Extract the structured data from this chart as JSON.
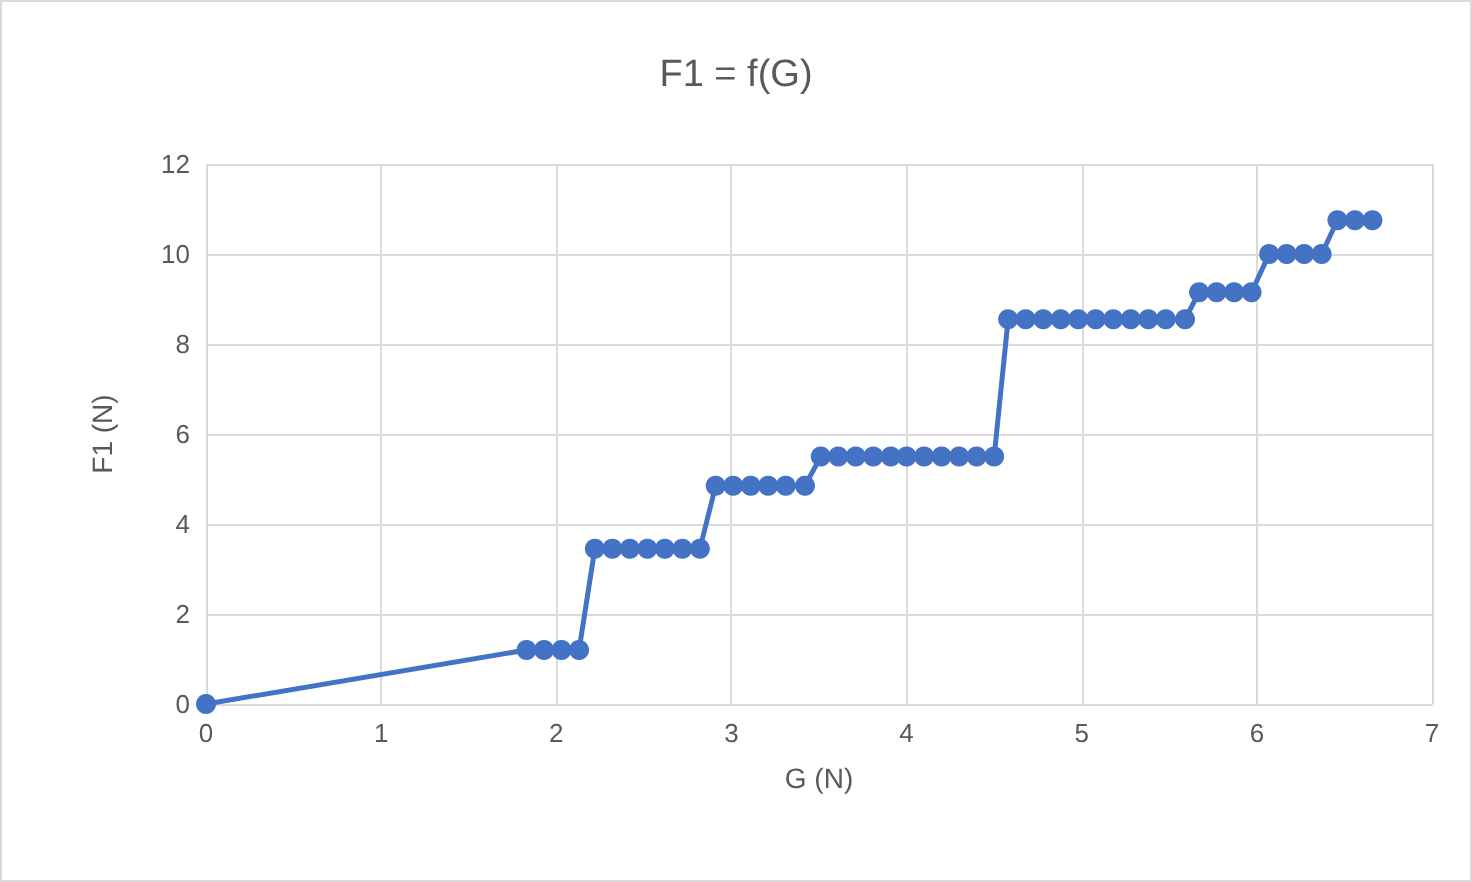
{
  "chart_data": {
    "type": "line",
    "title": "F1 = f(G)",
    "xlabel": "G (N)",
    "ylabel": "F1 (N)",
    "series": [
      {
        "color": "#4472c4",
        "x": [
          0,
          1.83,
          1.93,
          2.03,
          2.13,
          2.22,
          2.32,
          2.42,
          2.52,
          2.62,
          2.72,
          2.82,
          2.91,
          3.01,
          3.11,
          3.21,
          3.31,
          3.42,
          3.51,
          3.61,
          3.71,
          3.81,
          3.91,
          4.0,
          4.1,
          4.2,
          4.3,
          4.4,
          4.5,
          4.58,
          4.68,
          4.78,
          4.88,
          4.98,
          5.08,
          5.18,
          5.28,
          5.38,
          5.48,
          5.59,
          5.67,
          5.77,
          5.87,
          5.97,
          6.07,
          6.17,
          6.27,
          6.37,
          6.46,
          6.56,
          6.66
        ],
        "values": [
          0,
          1.2,
          1.2,
          1.2,
          1.2,
          3.45,
          3.45,
          3.45,
          3.45,
          3.45,
          3.45,
          3.45,
          4.85,
          4.85,
          4.85,
          4.85,
          4.85,
          4.85,
          5.5,
          5.5,
          5.5,
          5.5,
          5.5,
          5.5,
          5.5,
          5.5,
          5.5,
          5.5,
          5.5,
          8.55,
          8.55,
          8.55,
          8.55,
          8.55,
          8.55,
          8.55,
          8.55,
          8.55,
          8.55,
          8.55,
          9.15,
          9.15,
          9.15,
          9.15,
          10.0,
          10.0,
          10.0,
          10.0,
          10.75,
          10.75,
          10.75
        ]
      }
    ],
    "xlim": [
      0,
      7
    ],
    "xticks": [
      0,
      1,
      2,
      3,
      4,
      5,
      6,
      7
    ],
    "ylim": [
      0,
      12
    ],
    "yticks": [
      0,
      2,
      4,
      6,
      8,
      10,
      12
    ],
    "grid": true,
    "marker": "circle",
    "line_style": "solid"
  }
}
